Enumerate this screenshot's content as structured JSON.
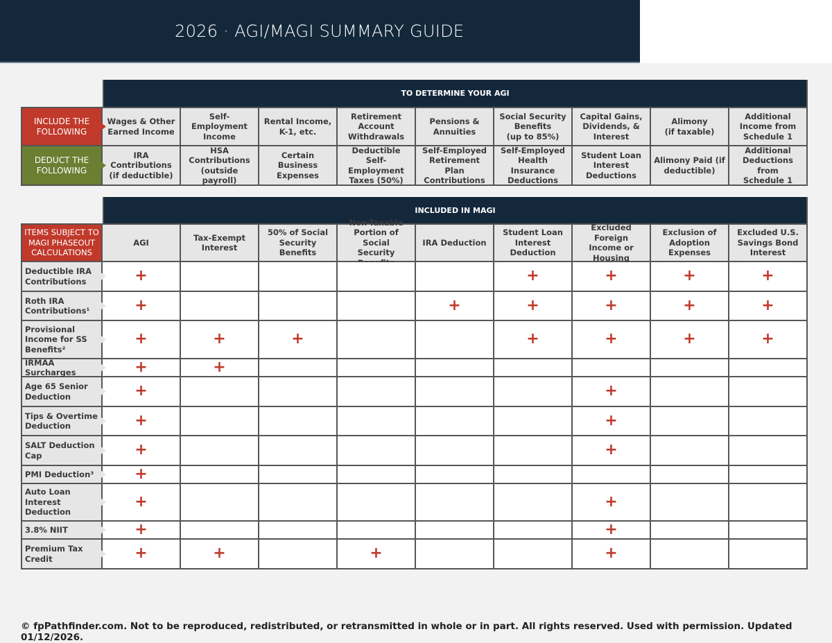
{
  "header": {
    "title": "2026 · AGI/MAGI SUMMARY GUIDE"
  },
  "agi": {
    "title": "TO DETERMINE YOUR AGI",
    "include_label": "INCLUDE THE\nFOLLOWING",
    "include": [
      "Wages & Other\nEarned Income",
      "Self-\nEmployment\nIncome",
      "Rental Income,\nK-1, etc.",
      "Retirement\nAccount\nWithdrawals",
      "Pensions &\nAnnuities",
      "Social Security\nBenefits\n(up to 85%)",
      "Capital Gains,\nDividends, &\nInterest",
      "Alimony\n(if taxable)",
      "Additional\nIncome from\nSchedule 1"
    ],
    "deduct_label": "DEDUCT THE\nFOLLOWING",
    "deduct": [
      "IRA\nContributions\n(if deductible)",
      "HSA\nContributions\n(outside payroll)",
      "Certain\nBusiness\nExpenses",
      "Deductible\nSelf-Employment\nTaxes (50%)",
      "Self-Employed\nRetirement Plan\nContributions",
      "Self-Employed\nHealth Insurance\nDeductions",
      "Student Loan\nInterest\nDeductions",
      "Alimony Paid (if\ndeductible)",
      "Additional\nDeductions from\nSchedule 1"
    ]
  },
  "magi": {
    "title": "INCLUDED IN MAGI",
    "corner_label": "ITEMS SUBJECT TO\nMAGI PHASEOUT\nCALCULATIONS",
    "columns": [
      "AGI",
      "Tax-Exempt\nInterest",
      "50% of Social\nSecurity Benefits",
      "Non-Taxable\nPortion of Social\nSecurity Benefits",
      "IRA Deduction",
      "Student Loan\nInterest\nDeduction",
      "Excluded Foreign\nIncome or\nHousing",
      "Exclusion of\nAdoption\nExpenses",
      "Excluded U.S.\nSavings Bond\nInterest"
    ],
    "marker": "+",
    "marker_color": "#c0392b",
    "rows": [
      {
        "label": "Deductible IRA\nContributions",
        "marks": [
          1,
          0,
          0,
          0,
          0,
          1,
          1,
          1,
          1
        ]
      },
      {
        "label": "Roth IRA\nContributions¹",
        "marks": [
          1,
          0,
          0,
          0,
          1,
          1,
          1,
          1,
          1
        ]
      },
      {
        "label": "Provisional\nIncome for SS\nBenefits²",
        "marks": [
          1,
          1,
          1,
          0,
          0,
          1,
          1,
          1,
          1
        ]
      },
      {
        "label": "IRMAA Surcharges",
        "marks": [
          1,
          1,
          0,
          0,
          0,
          0,
          0,
          0,
          0
        ]
      },
      {
        "label": "Age 65 Senior\nDeduction",
        "marks": [
          1,
          0,
          0,
          0,
          0,
          0,
          1,
          0,
          0
        ]
      },
      {
        "label": "Tips & Overtime\nDeduction",
        "marks": [
          1,
          0,
          0,
          0,
          0,
          0,
          1,
          0,
          0
        ]
      },
      {
        "label": "SALT Deduction\nCap",
        "marks": [
          1,
          0,
          0,
          0,
          0,
          0,
          1,
          0,
          0
        ]
      },
      {
        "label": "PMI Deduction³",
        "marks": [
          1,
          0,
          0,
          0,
          0,
          0,
          0,
          0,
          0
        ]
      },
      {
        "label": "Auto Loan\nInterest\nDeduction",
        "marks": [
          1,
          0,
          0,
          0,
          0,
          0,
          1,
          0,
          0
        ]
      },
      {
        "label": "3.8% NIIT",
        "marks": [
          1,
          0,
          0,
          0,
          0,
          0,
          1,
          0,
          0
        ]
      },
      {
        "label": "Premium Tax\nCredit",
        "marks": [
          1,
          1,
          0,
          1,
          0,
          0,
          1,
          0,
          0
        ]
      }
    ]
  },
  "footer": {
    "text": "© fpPathfinder.com. Not to be reproduced, redistributed, or retransmitted in whole or in part. All rights reserved. Used with permission. Updated 01/12/2026."
  }
}
